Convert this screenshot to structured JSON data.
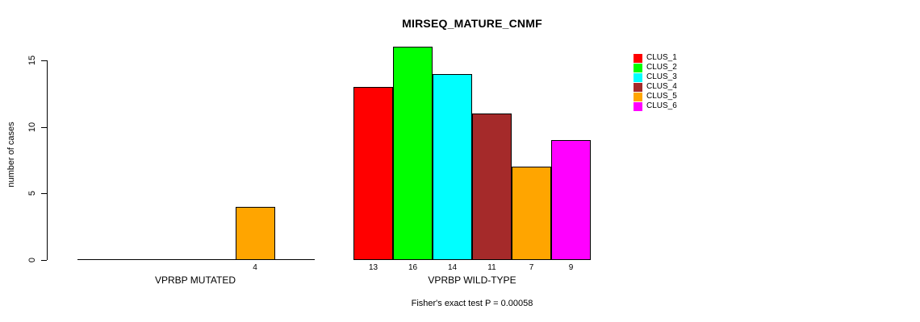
{
  "title": "MIRSEQ_MATURE_CNMF",
  "chart_data": {
    "type": "bar",
    "title": "MIRSEQ_MATURE_CNMF",
    "xlabel": "",
    "ylabel": "number of cases",
    "ylim": [
      0,
      16
    ],
    "yticks": [
      0,
      5,
      10,
      15
    ],
    "grid": false,
    "legend_position": "right",
    "bar_value_labels_shown": true,
    "series": [
      {
        "name": "CLUS_1",
        "color": "#FF0000"
      },
      {
        "name": "CLUS_2",
        "color": "#00FF00"
      },
      {
        "name": "CLUS_3",
        "color": "#00FFFF"
      },
      {
        "name": "CLUS_4",
        "color": "#A52A2A"
      },
      {
        "name": "CLUS_5",
        "color": "#FFA500"
      },
      {
        "name": "CLUS_6",
        "color": "#FF00FF"
      }
    ],
    "groups": [
      {
        "label": "VPRBP MUTATED",
        "values": [
          0,
          0,
          0,
          0,
          4,
          0
        ]
      },
      {
        "label": "VPRBP WILD-TYPE",
        "values": [
          13,
          16,
          14,
          11,
          7,
          9
        ]
      }
    ],
    "footnote": "Fisher's exact test P = 0.00058"
  },
  "legend": {
    "items": [
      "CLUS_1",
      "CLUS_2",
      "CLUS_3",
      "CLUS_4",
      "CLUS_5",
      "CLUS_6"
    ]
  }
}
